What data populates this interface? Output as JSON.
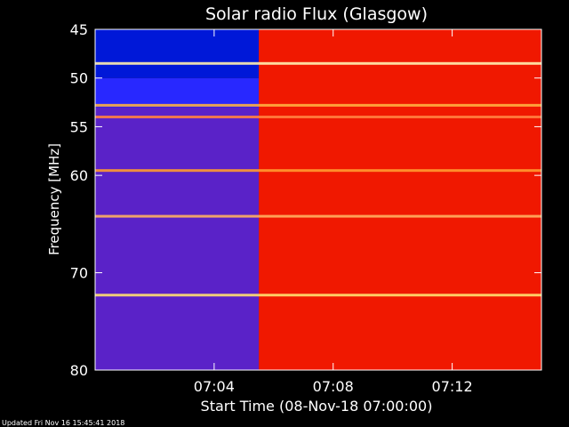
{
  "chart_data": {
    "type": "heatmap",
    "title": "Solar radio Flux (Glasgow)",
    "xlabel": "Start Time (08-Nov-18 07:00:00)",
    "ylabel": "Frequency [MHz]",
    "x_unit": "time",
    "y_unit": "MHz",
    "xlim": [
      "07:00:00",
      "07:15:00"
    ],
    "ylim": [
      45,
      80
    ],
    "y_reversed": true,
    "xticks": [
      "07:04",
      "07:08",
      "07:12"
    ],
    "yticks": [
      45,
      50,
      55,
      60,
      70,
      80
    ],
    "background_transition_time": "07:05:30",
    "regions": [
      {
        "x_range": [
          "07:00:00",
          "07:05:30"
        ],
        "freq_range": [
          45,
          50
        ],
        "color": "#0018d8"
      },
      {
        "x_range": [
          "07:00:00",
          "07:05:30"
        ],
        "freq_range": [
          50,
          53
        ],
        "color": "#2828ff"
      },
      {
        "x_range": [
          "07:00:00",
          "07:05:30"
        ],
        "freq_range": [
          53,
          80
        ],
        "color": "#5a22c8"
      },
      {
        "x_range": [
          "07:05:30",
          "07:15:00"
        ],
        "freq_range": [
          45,
          80
        ],
        "color": "#f01800"
      }
    ],
    "horizontal_bands": [
      {
        "freq": 48.5,
        "color": "#fff0b0"
      },
      {
        "freq": 52.8,
        "color": "#ffb040"
      },
      {
        "freq": 54.0,
        "color": "#ff8040"
      },
      {
        "freq": 59.5,
        "color": "#ff9a30"
      },
      {
        "freq": 64.2,
        "color": "#ffb060"
      },
      {
        "freq": 72.3,
        "color": "#ffe070"
      }
    ],
    "colors": {
      "background": "#000000",
      "axes": "#ffffff",
      "text": "#ffffff"
    }
  },
  "footer": {
    "updated": "Updated Fri Nov 16 15:45:41 2018"
  }
}
